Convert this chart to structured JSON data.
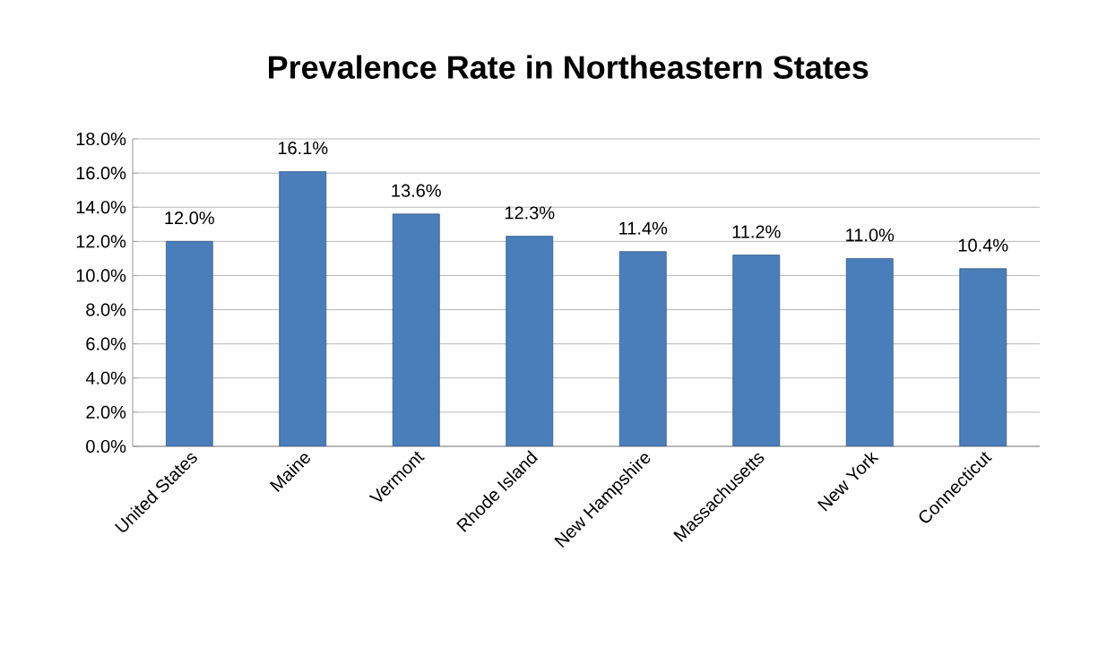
{
  "chart_data": {
    "type": "bar",
    "title": "Prevalence Rate in Northeastern States",
    "categories": [
      "United States",
      "Maine",
      "Vermont",
      "Rhode Island",
      "New Hampshire",
      "Massachusetts",
      "New York",
      "Connecticut"
    ],
    "values": [
      12.0,
      16.1,
      13.6,
      12.3,
      11.4,
      11.2,
      11.0,
      10.4
    ],
    "value_labels": [
      "12.0%",
      "16.1%",
      "13.6%",
      "12.3%",
      "11.4%",
      "11.2%",
      "11.0%",
      "10.4%"
    ],
    "color": "#4a7ebb",
    "ylim": [
      0,
      18
    ],
    "yticks": [
      {
        "value": 0,
        "label": "0.0%"
      },
      {
        "value": 2,
        "label": "2.0%"
      },
      {
        "value": 4,
        "label": "4.0%"
      },
      {
        "value": 6,
        "label": "6.0%"
      },
      {
        "value": 8,
        "label": "8.0%"
      },
      {
        "value": 10,
        "label": "10.0%"
      },
      {
        "value": 12,
        "label": "12.0%"
      },
      {
        "value": 14,
        "label": "14.0%"
      },
      {
        "value": 16,
        "label": "16.0%"
      },
      {
        "value": 18,
        "label": "18.0%"
      }
    ],
    "grid": "y"
  }
}
